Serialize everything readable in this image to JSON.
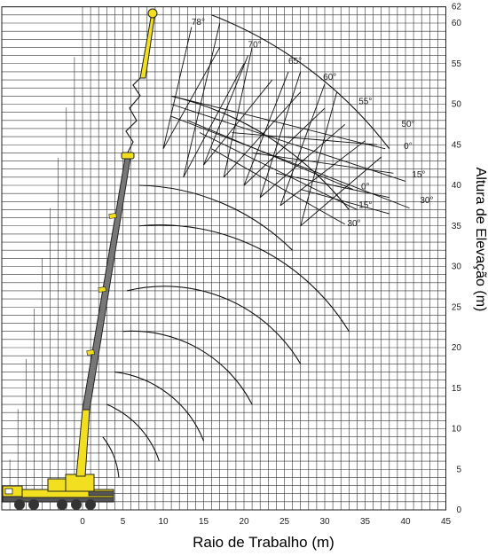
{
  "chart_data": {
    "type": "diagram",
    "xlabel": "Raio de Trabalho (m)",
    "ylabel": "Altura de Elevação (m)",
    "x_ticks": [
      0,
      5,
      10,
      15,
      20,
      25,
      30,
      35,
      40,
      45
    ],
    "y_ticks": [
      0,
      5,
      10,
      15,
      20,
      25,
      30,
      35,
      40,
      45,
      50,
      55,
      60,
      62
    ],
    "xlim": [
      -10,
      45
    ],
    "ylim": [
      0,
      62
    ],
    "grid": true,
    "angles": [
      {
        "label": "78°",
        "x": 13.5,
        "y": 59.8
      },
      {
        "label": "70°",
        "x": 20.5,
        "y": 57.0
      },
      {
        "label": "65°",
        "x": 25.5,
        "y": 55.0
      },
      {
        "label": "60°",
        "x": 29.8,
        "y": 53.0
      },
      {
        "label": "55°",
        "x": 34.2,
        "y": 50.0
      },
      {
        "label": "50°",
        "x": 39.5,
        "y": 47.2
      },
      {
        "label": "0°",
        "x": 39.8,
        "y": 44.5
      },
      {
        "label": "15°",
        "x": 40.8,
        "y": 41.0
      },
      {
        "label": "30°",
        "x": 41.8,
        "y": 37.8
      },
      {
        "label": "0°",
        "x": 34.5,
        "y": 39.5
      },
      {
        "label": "15°",
        "x": 34.2,
        "y": 37.2
      },
      {
        "label": "30°",
        "x": 32.8,
        "y": 35.0
      }
    ],
    "arcs": [
      {
        "from": [
          16.0,
          61.0
        ],
        "to": [
          38.0,
          44.5
        ],
        "cx": -5,
        "cy": 15,
        "r": 52
      },
      {
        "from": [
          11.0,
          51.0
        ],
        "to": [
          33.0,
          37.0
        ],
        "cx": -5,
        "cy": 15,
        "r": 43
      },
      {
        "from": [
          7.0,
          40.0
        ],
        "to": [
          26.0,
          32.0
        ],
        "cx": -5,
        "cy": 15,
        "r": 35
      },
      {
        "from": [
          7.0,
          35.0
        ],
        "to": [
          33.0,
          22.0
        ],
        "cx": -4,
        "cy": 10,
        "r": 37
      },
      {
        "from": [
          5.5,
          27.0
        ],
        "to": [
          27.0,
          18.0
        ],
        "cx": -4,
        "cy": 10,
        "r": 31
      },
      {
        "from": [
          5.0,
          22.0
        ],
        "to": [
          21.0,
          13.0
        ],
        "cx": -4,
        "cy": 8,
        "r": 25
      },
      {
        "from": [
          4.0,
          17.0
        ],
        "to": [
          15.0,
          8.5
        ],
        "cx": -4,
        "cy": 6,
        "r": 19
      },
      {
        "from": [
          3.0,
          13.0
        ],
        "to": [
          9.5,
          6.0
        ],
        "cx": -4,
        "cy": 4,
        "r": 14
      },
      {
        "from": [
          2.5,
          9.0
        ],
        "to": [
          4.5,
          4.0
        ],
        "cx": -4,
        "cy": 2,
        "r": 9
      }
    ],
    "jib_lines": [
      [
        [
          10.0,
          44.5
        ],
        [
          13.5,
          59.5
        ]
      ],
      [
        [
          12.5,
          41.0
        ],
        [
          17.0,
          60.0
        ]
      ],
      [
        [
          15.0,
          42.5
        ],
        [
          20.5,
          56.0
        ]
      ],
      [
        [
          17.5,
          41.0
        ],
        [
          21.0,
          57.0
        ]
      ],
      [
        [
          20.0,
          40.0
        ],
        [
          25.5,
          54.0
        ]
      ],
      [
        [
          22.0,
          38.5
        ],
        [
          27.0,
          54.0
        ]
      ],
      [
        [
          24.5,
          37.5
        ],
        [
          30.0,
          52.5
        ]
      ],
      [
        [
          27.0,
          35.0
        ],
        [
          31.5,
          51.5
        ]
      ],
      [
        [
          10.0,
          44.5
        ],
        [
          17.0,
          57.0
        ]
      ],
      [
        [
          12.5,
          41.0
        ],
        [
          20.0,
          55.0
        ]
      ],
      [
        [
          15.0,
          42.5
        ],
        [
          23.5,
          53.0
        ]
      ],
      [
        [
          17.5,
          41.0
        ],
        [
          27.0,
          51.5
        ]
      ],
      [
        [
          20.0,
          40.0
        ],
        [
          30.0,
          49.5
        ]
      ],
      [
        [
          22.0,
          38.5
        ],
        [
          32.5,
          47.5
        ]
      ],
      [
        [
          24.5,
          37.5
        ],
        [
          35.0,
          45.5
        ]
      ],
      [
        [
          27.0,
          35.0
        ],
        [
          37.0,
          43.5
        ]
      ],
      [
        [
          11.0,
          51.0
        ],
        [
          37.5,
          44.5
        ]
      ],
      [
        [
          11.0,
          50.0
        ],
        [
          40.0,
          40.5
        ]
      ],
      [
        [
          11.0,
          48.5
        ],
        [
          40.5,
          37.2
        ]
      ],
      [
        [
          13.0,
          48.0
        ],
        [
          33.5,
          39.5
        ]
      ],
      [
        [
          14.5,
          46.5
        ],
        [
          34.0,
          37.0
        ]
      ],
      [
        [
          16.0,
          44.5
        ],
        [
          32.5,
          35.2
        ]
      ],
      [
        [
          18.5,
          46.5
        ],
        [
          36.5,
          45.0
        ]
      ],
      [
        [
          21.0,
          44.0
        ],
        [
          38.5,
          41.5
        ]
      ],
      [
        [
          24.0,
          41.5
        ],
        [
          38.0,
          38.5
        ]
      ],
      [
        [
          27.0,
          39.5
        ],
        [
          38.0,
          36.5
        ]
      ]
    ]
  }
}
